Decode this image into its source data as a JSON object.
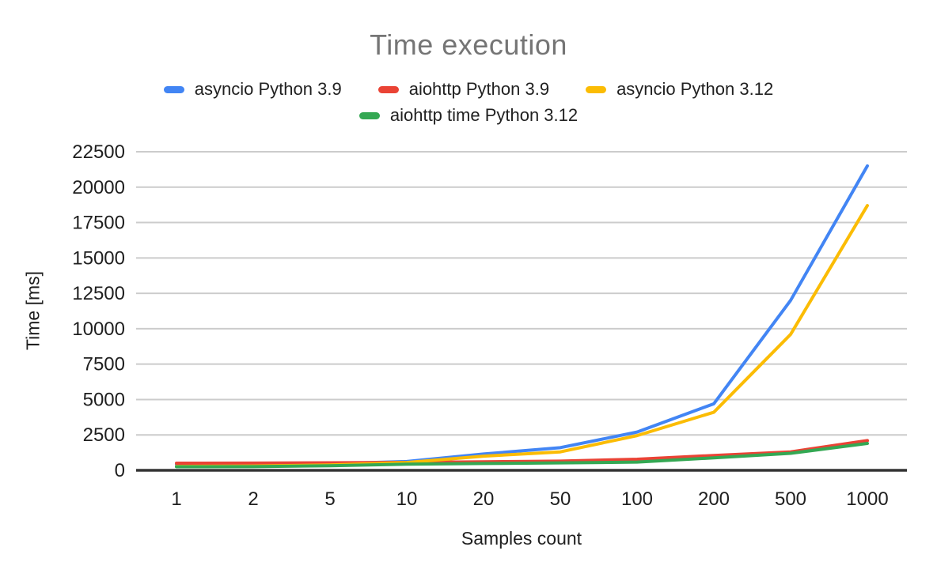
{
  "title": "Time execution",
  "axis": {
    "x_title": "Samples count",
    "y_title": "Time [ms]"
  },
  "chart_data": {
    "type": "line",
    "title": "Time execution",
    "xlabel": "Samples count",
    "ylabel": "Time [ms]",
    "categories": [
      "1",
      "2",
      "5",
      "10",
      "20",
      "50",
      "100",
      "200",
      "500",
      "1000"
    ],
    "x_scale": "categorical (log-like sample counts)",
    "ylim": [
      0,
      22500
    ],
    "ytick_step": 2500,
    "yticks": [
      0,
      2500,
      5000,
      7500,
      10000,
      12500,
      15000,
      17500,
      20000,
      22500
    ],
    "grid": true,
    "legend_position": "top",
    "series": [
      {
        "name": "asyncio Python 3.9",
        "color": "#4285F4",
        "values": [
          420,
          430,
          460,
          620,
          1150,
          1600,
          2700,
          4700,
          12000,
          21500
        ]
      },
      {
        "name": "aiohttp Python 3.9",
        "color": "#EA4335",
        "values": [
          500,
          510,
          530,
          560,
          600,
          650,
          780,
          1050,
          1300,
          2100
        ]
      },
      {
        "name": "asyncio Python 3.12",
        "color": "#FBBC04",
        "values": [
          280,
          300,
          380,
          550,
          1000,
          1300,
          2450,
          4100,
          9600,
          18700
        ]
      },
      {
        "name": "aiohttp time Python 3.12",
        "color": "#34A853",
        "values": [
          250,
          260,
          320,
          430,
          480,
          520,
          580,
          880,
          1200,
          1900
        ]
      }
    ]
  },
  "style_colors": {
    "title_gray": "#757575",
    "gridline": "#cccccc",
    "axis_line": "#333333",
    "tick_text": "#1f1f1f"
  }
}
